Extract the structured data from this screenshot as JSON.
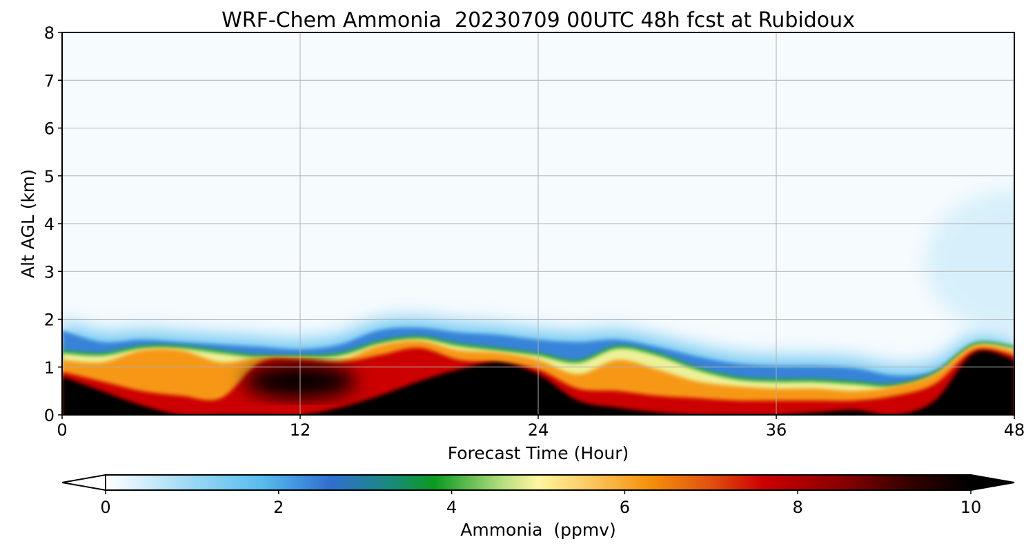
{
  "chart_data": {
    "type": "heatmap",
    "title": "WRF-Chem Ammonia  20230709 00UTC 48h fcst at Rubidoux",
    "xlabel": "Forecast Time (Hour)",
    "ylabel": "Alt AGL (km)",
    "xlim": [
      0,
      48
    ],
    "ylim": [
      0,
      8
    ],
    "xticks": [
      0,
      12,
      24,
      36,
      48
    ],
    "yticks": [
      0,
      1,
      2,
      3,
      4,
      5,
      6,
      7,
      8
    ],
    "grid": true,
    "colorbar": {
      "label": "Ammonia  (ppmv)",
      "range": [
        0,
        10
      ],
      "ticks": [
        0,
        2,
        4,
        6,
        8,
        10
      ],
      "extend": "both",
      "orientation": "horizontal",
      "stops": [
        {
          "value": 0,
          "color": "#ffffff"
        },
        {
          "value": 1,
          "color": "#9ad8f4"
        },
        {
          "value": 1.8,
          "color": "#58bdf0"
        },
        {
          "value": 2.6,
          "color": "#2f6fd0"
        },
        {
          "value": 3.3,
          "color": "#1a8a7a"
        },
        {
          "value": 3.8,
          "color": "#0a9a20"
        },
        {
          "value": 4.6,
          "color": "#b8e080"
        },
        {
          "value": 5,
          "color": "#fff5a0"
        },
        {
          "value": 5.6,
          "color": "#fcc860"
        },
        {
          "value": 6.3,
          "color": "#f5900a"
        },
        {
          "value": 7,
          "color": "#e05010"
        },
        {
          "value": 7.6,
          "color": "#cc0000"
        },
        {
          "value": 8.5,
          "color": "#8a0000"
        },
        {
          "value": 9.3,
          "color": "#350000"
        },
        {
          "value": 10,
          "color": "#000000"
        }
      ]
    },
    "times": [
      0,
      2,
      4,
      6,
      8,
      10,
      12,
      14,
      16,
      18,
      20,
      22,
      24,
      26,
      28,
      30,
      32,
      34,
      36,
      38,
      40,
      42,
      44,
      46,
      48
    ],
    "layer_tops_km": {
      "blue_layer_top": [
        1.95,
        1.7,
        1.75,
        1.7,
        1.65,
        1.6,
        1.55,
        1.65,
        1.95,
        2.0,
        1.9,
        1.85,
        1.75,
        1.7,
        1.75,
        1.6,
        1.4,
        1.25,
        1.2,
        1.2,
        1.15,
        1.0,
        1.1,
        1.65,
        1.55
      ],
      "green_layer_top": [
        1.35,
        1.3,
        1.45,
        1.45,
        1.35,
        1.25,
        1.25,
        1.3,
        1.55,
        1.65,
        1.5,
        1.4,
        1.3,
        1.15,
        1.45,
        1.3,
        1.0,
        0.8,
        0.75,
        0.75,
        0.7,
        0.65,
        0.9,
        1.5,
        1.45
      ],
      "orange_layer_top": [
        1.15,
        1.1,
        1.35,
        1.35,
        1.1,
        1.2,
        1.2,
        1.15,
        1.45,
        1.55,
        1.35,
        1.3,
        1.15,
        0.85,
        1.15,
        0.95,
        0.7,
        0.6,
        0.55,
        0.55,
        0.5,
        0.6,
        0.85,
        1.45,
        1.35
      ],
      "red_layer_top": [
        0.9,
        0.7,
        0.5,
        0.4,
        0.35,
        1.1,
        1.15,
        1.1,
        1.25,
        1.4,
        1.15,
        1.1,
        0.95,
        0.55,
        0.5,
        0.4,
        0.35,
        0.3,
        0.3,
        0.3,
        0.3,
        0.4,
        0.65,
        1.35,
        1.25
      ],
      "black_core_top": [
        0.8,
        0.5,
        0.2,
        0.0,
        0.0,
        0.0,
        0.0,
        0.15,
        0.4,
        0.7,
        0.95,
        1.1,
        0.85,
        0.3,
        0.15,
        0.05,
        0.0,
        0.0,
        0.0,
        0.05,
        0.1,
        0.0,
        0.3,
        1.3,
        1.15
      ]
    },
    "isolated_features": [
      {
        "name": "black pocket",
        "x_center_hour": 12,
        "alt_center_km": 0.7,
        "x_half_width_hour": 2.8,
        "alt_half_height_km": 0.35,
        "value_ppmv": 10
      },
      {
        "name": "light blue plume aloft",
        "x_center_hour": 48,
        "alt_center_km": 3.2,
        "x_half_width_hour": 4.5,
        "alt_half_height_km": 1.5,
        "value_ppmv": 0.6
      }
    ]
  }
}
